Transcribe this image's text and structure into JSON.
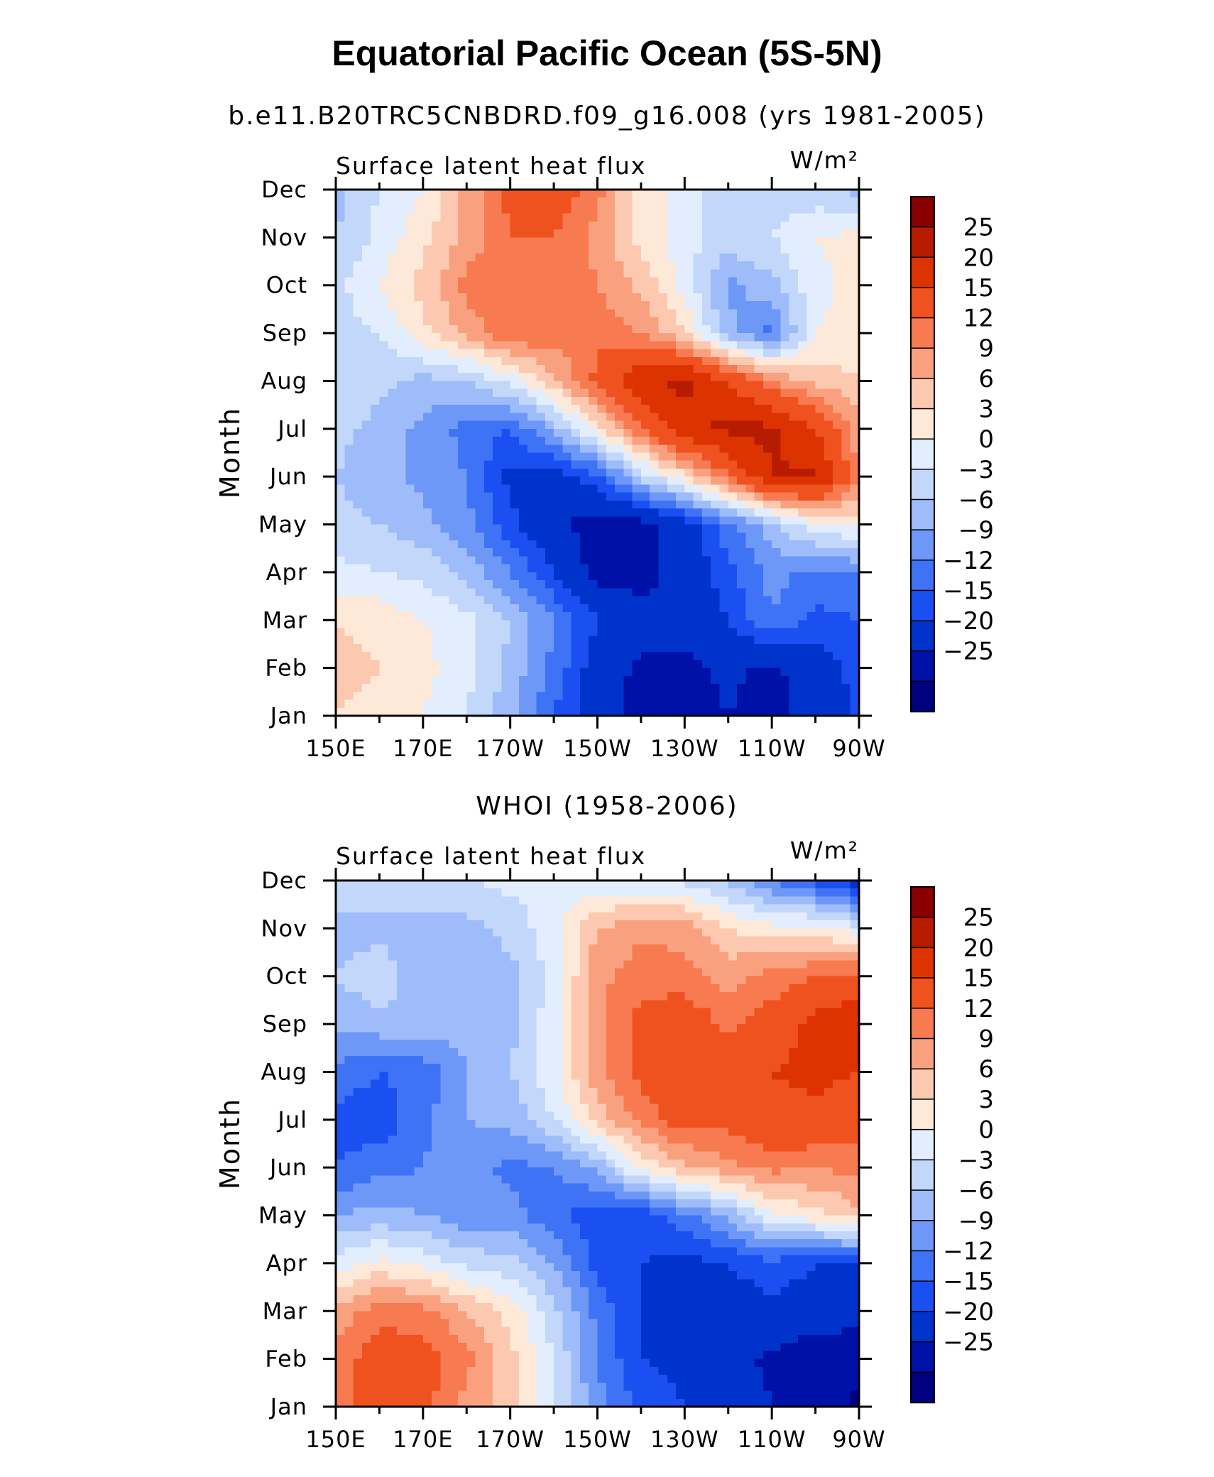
{
  "title": "Equatorial Pacific Ocean (5S-5N)",
  "colors": [
    "#000080",
    "#0011a8",
    "#0033cc",
    "#1a4ff2",
    "#3f73f5",
    "#6e98f7",
    "#9dbcf9",
    "#c3d7fb",
    "#e2eefd",
    "#fee8d8",
    "#fcc9b0",
    "#f9a17f",
    "#f77a50",
    "#f0521f",
    "#dd3300",
    "#b81c00",
    "#880000"
  ],
  "chart_data": [
    {
      "type": "heatmap",
      "title": "b.e11.B20TRC5CNBDRD.f09_g16.008 (yrs 1981-2005)",
      "left_label": "Surface latent heat flux",
      "units": "W/m²",
      "ylabel": "Month",
      "x_ticks": [
        "150E",
        "170E",
        "170W",
        "150W",
        "130W",
        "110W",
        "90W"
      ],
      "y_ticks": [
        "Jan",
        "Feb",
        "Mar",
        "Apr",
        "May",
        "Jun",
        "Jul",
        "Aug",
        "Sep",
        "Oct",
        "Nov",
        "Dec"
      ],
      "colorbar_levels": [
        "25",
        "20",
        "15",
        "12",
        "9",
        "6",
        "3",
        "0",
        "−3",
        "−6",
        "−9",
        "−12",
        "−15",
        "−20",
        "−25"
      ],
      "x_lon": [
        150,
        160,
        170,
        180,
        190,
        200,
        210,
        220,
        230,
        240,
        250,
        260,
        270
      ],
      "values": [
        [
          6,
          5,
          3,
          0,
          -5,
          -12,
          -18,
          -22,
          -22,
          -20,
          -22,
          -18,
          -14
        ],
        [
          7,
          6,
          4,
          1,
          -4,
          -10,
          -17,
          -21,
          -21,
          -19,
          -21,
          -17,
          -14
        ],
        [
          6,
          5,
          3,
          1,
          -3,
          -9,
          -15,
          -18,
          -18,
          -15,
          -9,
          -13,
          -12
        ],
        [
          1,
          0,
          -1,
          -4,
          -9,
          -15,
          -22,
          -22,
          -18,
          -13,
          -8,
          -10,
          -9
        ],
        [
          -2,
          -3,
          -5,
          -8,
          -14,
          -19,
          -22,
          -22,
          -17,
          -10,
          -4,
          2,
          4
        ],
        [
          -3,
          -5,
          -7,
          -9,
          -16,
          -17,
          -13,
          -2,
          5,
          15,
          25,
          26,
          12
        ],
        [
          -2,
          -4,
          -7,
          -10,
          -12,
          -5,
          5,
          15,
          24,
          26,
          26,
          20,
          10
        ],
        [
          -1,
          -2,
          -4,
          -3,
          1,
          8,
          16,
          24,
          26,
          20,
          12,
          8,
          6
        ],
        [
          -1,
          0,
          5,
          10,
          15,
          14,
          14,
          12,
          6,
          -5,
          -10,
          3,
          4
        ],
        [
          -1,
          3,
          7,
          13,
          14,
          14,
          12,
          8,
          2,
          -7,
          -4,
          2,
          4
        ],
        [
          -3,
          1,
          5,
          10,
          15,
          15,
          11,
          5,
          1,
          -1,
          0,
          3,
          4
        ],
        [
          -4,
          0,
          3,
          10,
          16,
          18,
          13,
          5,
          1,
          -2,
          -2,
          -2,
          -4
        ]
      ]
    },
    {
      "type": "heatmap",
      "title": "WHOI (1958-2006)",
      "left_label": "Surface latent heat flux",
      "units": "W/m²",
      "ylabel": "Month",
      "x_ticks": [
        "150E",
        "170E",
        "170W",
        "150W",
        "130W",
        "110W",
        "90W"
      ],
      "y_ticks": [
        "Jan",
        "Feb",
        "Mar",
        "Apr",
        "May",
        "Jun",
        "Jul",
        "Aug",
        "Sep",
        "Oct",
        "Nov",
        "Dec"
      ],
      "colorbar_levels": [
        "25",
        "20",
        "15",
        "12",
        "9",
        "6",
        "3",
        "0",
        "−3",
        "−6",
        "−9",
        "−12",
        "−15",
        "−20",
        "−25"
      ],
      "x_lon": [
        150,
        160,
        170,
        180,
        190,
        200,
        210,
        220,
        230,
        240,
        250,
        260,
        270
      ],
      "values": [
        [
          14,
          17,
          16,
          11,
          7,
          0,
          -8,
          -13,
          -15,
          -17,
          -20,
          -22,
          -26
        ],
        [
          13,
          17,
          17,
          13,
          7,
          0,
          -9,
          -15,
          -16,
          -18,
          -21,
          -23,
          -24
        ],
        [
          10,
          14,
          13,
          9,
          5,
          -2,
          -10,
          -15,
          -16,
          -17,
          -16,
          -17,
          -18
        ],
        [
          1,
          4,
          2,
          -1,
          -2,
          -6,
          -13,
          -15,
          -16,
          -15,
          -13,
          -15,
          -15
        ],
        [
          -6,
          -5,
          -6,
          -8,
          -8,
          -11,
          -14,
          -14,
          -10,
          -5,
          2,
          5,
          8
        ],
        [
          -12,
          -10,
          -9,
          -7,
          -10,
          -9,
          -5,
          4,
          8,
          11,
          13,
          12,
          13
        ],
        [
          -13,
          -14,
          -10,
          -6,
          -5,
          0,
          7,
          13,
          17,
          16,
          19,
          19,
          17
        ],
        [
          -10,
          -12,
          -11,
          -6,
          -3,
          2,
          11,
          16,
          20,
          17,
          20,
          21,
          20
        ],
        [
          -5,
          -4,
          -4,
          -5,
          -4,
          2,
          11,
          16,
          18,
          14,
          17,
          22,
          24
        ],
        [
          -3,
          -1,
          -5,
          -5,
          -4,
          1,
          11,
          14,
          13,
          11,
          13,
          15,
          16
        ],
        [
          -4,
          -4,
          -5,
          -4,
          -2,
          2,
          9,
          11,
          11,
          6,
          4,
          4,
          1
        ],
        [
          -1,
          0,
          0,
          0,
          1,
          0,
          1,
          0,
          -1,
          -4,
          -9,
          -13,
          -18
        ]
      ]
    }
  ]
}
